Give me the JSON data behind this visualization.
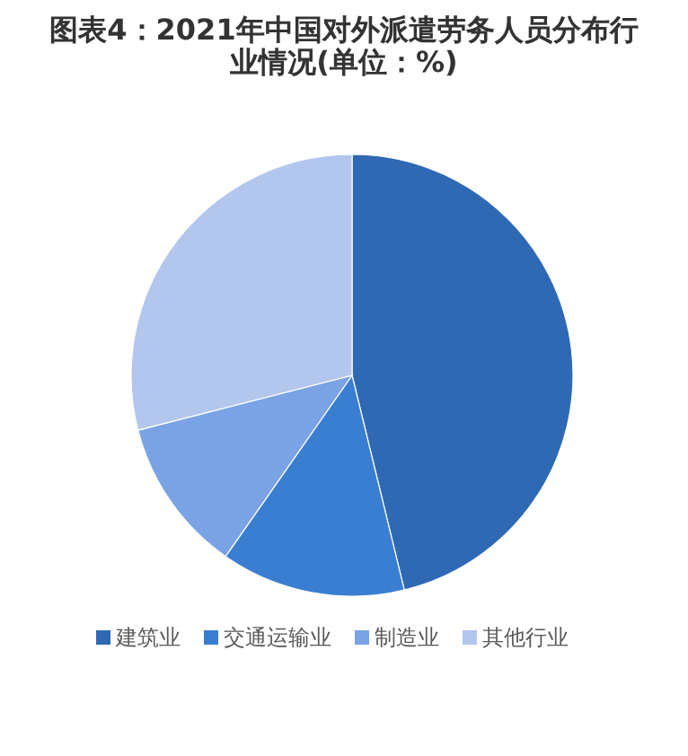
{
  "chart_data": {
    "type": "pie",
    "title": "图表4：2021年中国对外派遣劳务人员分布行业情况(单位：%)",
    "categories": [
      "建筑业",
      "交通运输业",
      "制造业",
      "其他行业"
    ],
    "values": [
      46.2,
      13.5,
      11.3,
      29.0
    ],
    "colors": [
      "#2f69b3",
      "#3a7ed1",
      "#7aa3e5",
      "#b3c6ee"
    ],
    "legend": "bottom"
  }
}
